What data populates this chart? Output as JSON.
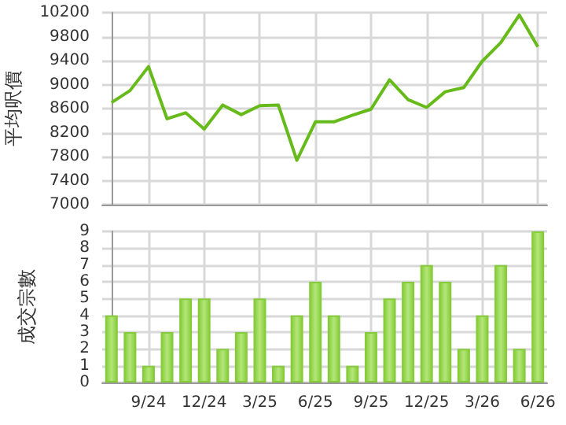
{
  "chart_data": [
    {
      "type": "line",
      "ylabel": "平均呎價",
      "categories": [
        null,
        null,
        null,
        null,
        null,
        null,
        null,
        null,
        null,
        null,
        null,
        null,
        null,
        null,
        null,
        null,
        null,
        null,
        null,
        null,
        null,
        null,
        null,
        null
      ],
      "values": [
        8700,
        8900,
        9300,
        8430,
        8530,
        8260,
        8660,
        8500,
        8650,
        8660,
        7740,
        8380,
        8380,
        8490,
        8590,
        9080,
        8750,
        8620,
        8880,
        8950,
        9390,
        9700,
        10160,
        9630
      ],
      "color": "#66bb1a",
      "ylim": [
        7000,
        10200
      ],
      "yticks": [
        7000,
        7400,
        7800,
        8200,
        8600,
        9000,
        9400,
        9800,
        10200
      ],
      "grid": true,
      "tick_labels": "y",
      "marker": "none"
    },
    {
      "type": "bar",
      "ylabel": "成交宗數",
      "categories": [
        null,
        null,
        "9/24",
        null,
        null,
        "12/24",
        null,
        null,
        "3/25",
        null,
        null,
        "6/25",
        null,
        null,
        "9/25",
        null,
        null,
        "12/25",
        null,
        null,
        "3/26",
        null,
        null,
        "6/26"
      ],
      "values": [
        4,
        3,
        1,
        3,
        5,
        5,
        2,
        3,
        5,
        1,
        4,
        6,
        4,
        1,
        3,
        5,
        6,
        7,
        6,
        2,
        4,
        7,
        2,
        9
      ],
      "color": "#86cc3a",
      "ylim": [
        0,
        9
      ],
      "yticks": [
        0,
        1,
        2,
        3,
        4,
        5,
        6,
        7,
        8,
        9
      ],
      "grid": true
    }
  ]
}
